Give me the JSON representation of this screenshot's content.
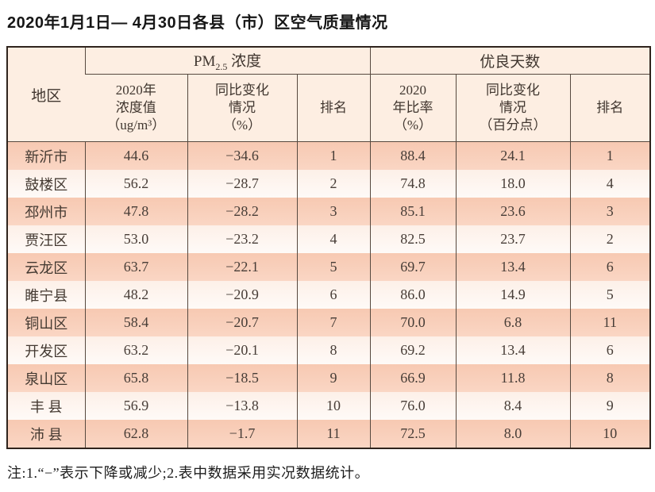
{
  "title": "2020年1月1日— 4月30日各县（市）区空气质量情况",
  "table": {
    "region_header": "地区",
    "group_headers": {
      "pm25": {
        "prefix": "PM",
        "sub": "2.5",
        "suffix": " 浓度"
      },
      "good_days": "优良天数"
    },
    "sub_headers": {
      "pm_value": "2020年\n浓度值\n（ug/m³）",
      "pm_change": "同比变化\n情况\n（%）",
      "pm_rank": "排名",
      "good_ratio": "2020\n年比率\n（%）",
      "good_change": "同比变化\n情况\n（百分点）",
      "good_rank": "排名"
    },
    "rows": [
      {
        "region": "新沂市",
        "pm_value": "44.6",
        "pm_change": "−34.6",
        "pm_rank": "1",
        "good_ratio": "88.4",
        "good_change": "24.1",
        "good_rank": "1"
      },
      {
        "region": "鼓楼区",
        "pm_value": "56.2",
        "pm_change": "−28.7",
        "pm_rank": "2",
        "good_ratio": "74.8",
        "good_change": "18.0",
        "good_rank": "4"
      },
      {
        "region": "邳州市",
        "pm_value": "47.8",
        "pm_change": "−28.2",
        "pm_rank": "3",
        "good_ratio": "85.1",
        "good_change": "23.6",
        "good_rank": "3"
      },
      {
        "region": "贾汪区",
        "pm_value": "53.0",
        "pm_change": "−23.2",
        "pm_rank": "4",
        "good_ratio": "82.5",
        "good_change": "23.7",
        "good_rank": "2"
      },
      {
        "region": "云龙区",
        "pm_value": "63.7",
        "pm_change": "−22.1",
        "pm_rank": "5",
        "good_ratio": "69.7",
        "good_change": "13.4",
        "good_rank": "6"
      },
      {
        "region": "睢宁县",
        "pm_value": "48.2",
        "pm_change": "−20.9",
        "pm_rank": "6",
        "good_ratio": "86.0",
        "good_change": "14.9",
        "good_rank": "5"
      },
      {
        "region": "铜山区",
        "pm_value": "58.4",
        "pm_change": "−20.7",
        "pm_rank": "7",
        "good_ratio": "70.0",
        "good_change": "6.8",
        "good_rank": "11"
      },
      {
        "region": "开发区",
        "pm_value": "63.2",
        "pm_change": "−20.1",
        "pm_rank": "8",
        "good_ratio": "69.2",
        "good_change": "13.4",
        "good_rank": "6"
      },
      {
        "region": "泉山区",
        "pm_value": "65.8",
        "pm_change": "−18.5",
        "pm_rank": "9",
        "good_ratio": "66.9",
        "good_change": "11.8",
        "good_rank": "8"
      },
      {
        "region": "丰 县",
        "pm_value": "56.9",
        "pm_change": "−13.8",
        "pm_rank": "10",
        "good_ratio": "76.0",
        "good_change": "8.4",
        "good_rank": "9"
      },
      {
        "region": "沛 县",
        "pm_value": "62.8",
        "pm_change": "−1.7",
        "pm_rank": "11",
        "good_ratio": "72.5",
        "good_change": "8.0",
        "good_rank": "10"
      }
    ]
  },
  "note": "注:1.“−”表示下降或减少;2.表中数据采用实况数据统计。",
  "colors": {
    "row_odd": "#f7c9b2",
    "row_even": "#fdf0e8",
    "header_bg": "#fdeee2",
    "outer_border": "#2f241d",
    "grid_line": "#57493f",
    "cell_text": "#473d37",
    "title_text": "#161616"
  }
}
